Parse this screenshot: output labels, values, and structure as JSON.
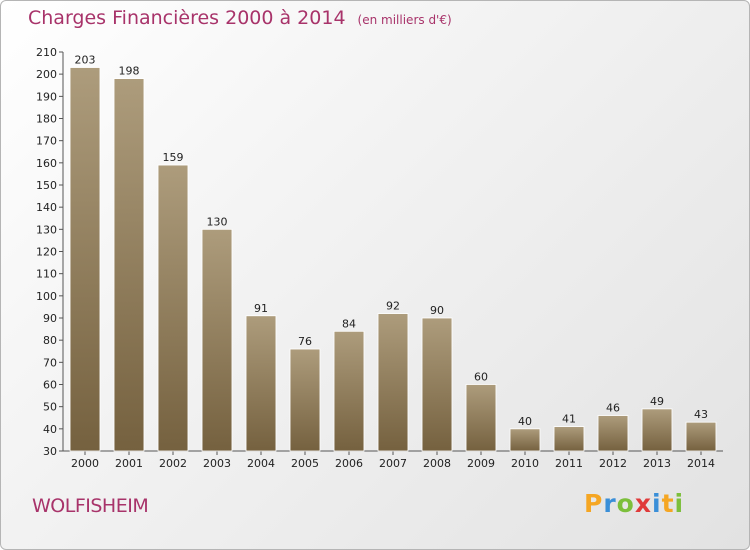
{
  "header": {
    "title": "Charges Financières 2000 à 2014",
    "unit": "(en milliers d'€)"
  },
  "footer": {
    "commune": "WOLFISHEIM",
    "logo_letters": [
      "P",
      "r",
      "o",
      "x",
      "i",
      "t",
      "i"
    ],
    "logo_colors": [
      "#f5a623",
      "#3a8fd8",
      "#7cbf3b",
      "#e03a3a",
      "#3a8fd8",
      "#f5a623",
      "#7cbf3b"
    ]
  },
  "chart_data": {
    "type": "bar",
    "title": "Charges Financières 2000 à 2014",
    "subtitle": "(en milliers d'€)",
    "xlabel": "",
    "ylabel": "",
    "categories": [
      "2000",
      "2001",
      "2002",
      "2003",
      "2004",
      "2005",
      "2006",
      "2007",
      "2008",
      "2009",
      "2010",
      "2011",
      "2012",
      "2013",
      "2014"
    ],
    "values": [
      203,
      198,
      159,
      130,
      91,
      76,
      84,
      92,
      90,
      60,
      40,
      41,
      46,
      49,
      43
    ],
    "ylim": [
      30,
      210
    ],
    "yticks": [
      30,
      40,
      50,
      60,
      70,
      80,
      90,
      100,
      110,
      120,
      130,
      140,
      150,
      160,
      170,
      180,
      190,
      200,
      210
    ],
    "grid": false,
    "bar_color_top": "#ad9c7c",
    "bar_color_bottom": "#75613f"
  }
}
